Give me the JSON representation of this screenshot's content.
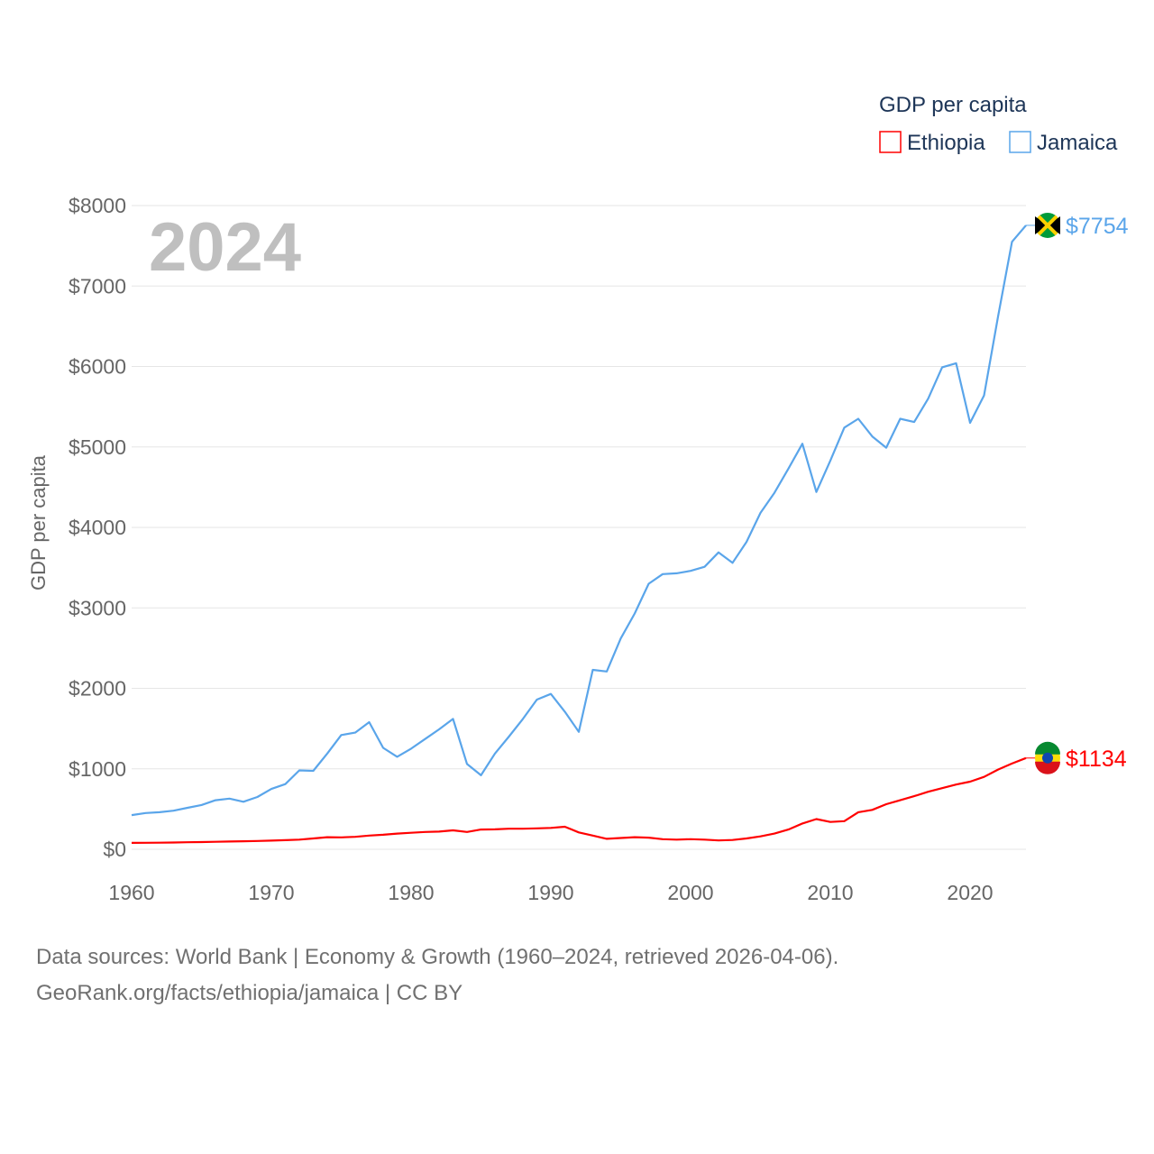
{
  "chart_data": {
    "type": "line",
    "title": "GDP per capita",
    "ylabel": "GDP per capita",
    "xlabel": "",
    "year_label": "2024",
    "xlim": [
      1960,
      2024
    ],
    "ylim": [
      0,
      8000
    ],
    "x_ticks": [
      "1960",
      "1970",
      "1980",
      "1990",
      "2000",
      "2010",
      "2020"
    ],
    "y_ticks": [
      "$0",
      "$1000",
      "$2000",
      "$3000",
      "$4000",
      "$5000",
      "$6000",
      "$7000",
      "$8000"
    ],
    "grid": true,
    "legend_position": "top-right",
    "x": [
      1960,
      1961,
      1962,
      1963,
      1964,
      1965,
      1966,
      1967,
      1968,
      1969,
      1970,
      1971,
      1972,
      1973,
      1974,
      1975,
      1976,
      1977,
      1978,
      1979,
      1980,
      1981,
      1982,
      1983,
      1984,
      1985,
      1986,
      1987,
      1988,
      1989,
      1990,
      1991,
      1992,
      1993,
      1994,
      1995,
      1996,
      1997,
      1998,
      1999,
      2000,
      2001,
      2002,
      2003,
      2004,
      2005,
      2006,
      2007,
      2008,
      2009,
      2010,
      2011,
      2012,
      2013,
      2014,
      2015,
      2016,
      2017,
      2018,
      2019,
      2020,
      2021,
      2022,
      2023,
      2024
    ],
    "series": [
      {
        "name": "Ethiopia",
        "color": "#ff0000",
        "end_label": "$1134",
        "values": [
          80,
          81,
          82,
          84,
          87,
          90,
          93,
          96,
          100,
          103,
          108,
          113,
          120,
          135,
          150,
          148,
          155,
          170,
          180,
          195,
          205,
          215,
          220,
          235,
          215,
          245,
          248,
          255,
          255,
          260,
          265,
          280,
          210,
          170,
          130,
          140,
          150,
          145,
          125,
          120,
          125,
          120,
          110,
          115,
          135,
          160,
          195,
          245,
          320,
          375,
          340,
          350,
          460,
          490,
          560,
          610,
          660,
          715,
          760,
          805,
          840,
          900,
          990,
          1065,
          1134
        ]
      },
      {
        "name": "Jamaica",
        "color": "#5aa5ea",
        "end_label": "$7754",
        "values": [
          425,
          450,
          460,
          480,
          515,
          550,
          610,
          630,
          590,
          650,
          750,
          810,
          980,
          975,
          1190,
          1420,
          1450,
          1580,
          1260,
          1150,
          1250,
          1370,
          1490,
          1620,
          1060,
          920,
          1190,
          1400,
          1620,
          1860,
          1930,
          1710,
          1460,
          2230,
          2210,
          2620,
          2930,
          3300,
          3420,
          3430,
          3460,
          3510,
          3690,
          3560,
          3820,
          4180,
          4430,
          4730,
          5040,
          4440,
          4830,
          5240,
          5350,
          5130,
          4990,
          5350,
          5310,
          5600,
          5990,
          6040,
          5300,
          5640,
          6620,
          7550,
          7754
        ]
      }
    ]
  },
  "footer": {
    "line1": "Data sources: World Bank | Economy & Growth (1960–2024, retrieved 2026-04-06).",
    "line2": "GeoRank.org/facts/ethiopia/jamaica | CC BY"
  }
}
